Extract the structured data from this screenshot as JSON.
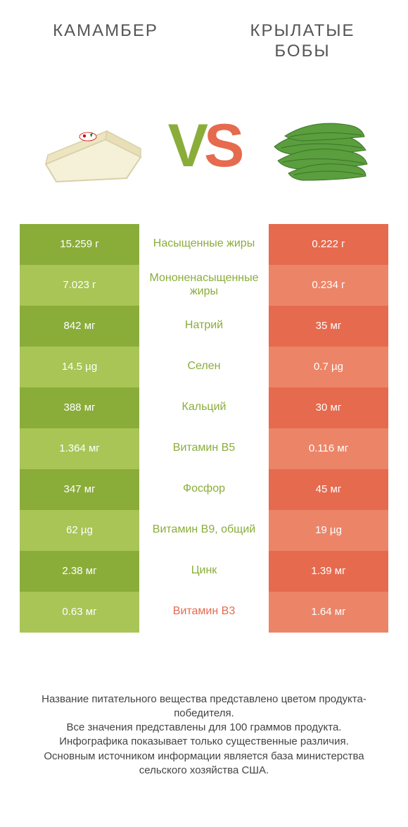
{
  "titles": {
    "left": "КАМАМБЕР",
    "right": "КРЫЛАТЫЕ БОБЫ"
  },
  "vs": {
    "v": "V",
    "s": "S"
  },
  "colors": {
    "green_dark": "#8aad3a",
    "green_light": "#a8c556",
    "orange_dark": "#e66a4e",
    "orange_light": "#ec8568",
    "mid_green": "#8aad3a",
    "mid_orange": "#e66a4e"
  },
  "rows": [
    {
      "left": "15.259 г",
      "mid": "Насыщенные жиры",
      "right": "0.222 г",
      "winner": "left"
    },
    {
      "left": "7.023 г",
      "mid": "Мононенасыщенные жиры",
      "right": "0.234 г",
      "winner": "left"
    },
    {
      "left": "842 мг",
      "mid": "Натрий",
      "right": "35 мг",
      "winner": "left"
    },
    {
      "left": "14.5 µg",
      "mid": "Селен",
      "right": "0.7 µg",
      "winner": "left"
    },
    {
      "left": "388 мг",
      "mid": "Кальций",
      "right": "30 мг",
      "winner": "left"
    },
    {
      "left": "1.364 мг",
      "mid": "Витамин B5",
      "right": "0.116 мг",
      "winner": "left"
    },
    {
      "left": "347 мг",
      "mid": "Фосфор",
      "right": "45 мг",
      "winner": "left"
    },
    {
      "left": "62 µg",
      "mid": "Витамин B9, общий",
      "right": "19 µg",
      "winner": "left"
    },
    {
      "left": "2.38 мг",
      "mid": "Цинк",
      "right": "1.39 мг",
      "winner": "left"
    },
    {
      "left": "0.63 мг",
      "mid": "Витамин B3",
      "right": "1.64 мг",
      "winner": "right"
    }
  ],
  "footer": {
    "l1": "Название питательного вещества представлено цветом продукта-победителя.",
    "l2": "Все значения представлены для 100 граммов продукта.",
    "l3": "Инфографика показывает только существенные различия.",
    "l4": "Основным источником информации является база министерства сельского хозяйства США."
  }
}
